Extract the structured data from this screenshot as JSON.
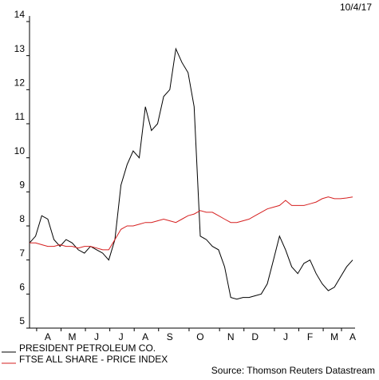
{
  "chart_data": {
    "type": "line",
    "date": "10/4/17",
    "source": "Source: Thomson Reuters Datastream",
    "categories": [
      null,
      null,
      null,
      "A",
      null,
      null,
      null,
      "M",
      null,
      null,
      null,
      "J",
      null,
      null,
      null,
      "J",
      null,
      null,
      null,
      "A",
      null,
      null,
      null,
      "S",
      null,
      null,
      null,
      null,
      "O",
      null,
      null,
      null,
      null,
      "N",
      null,
      null,
      null,
      "D",
      null,
      null,
      null,
      null,
      "J",
      null,
      null,
      null,
      "F",
      null,
      null,
      null,
      "M",
      null,
      null,
      "A"
    ],
    "series": [
      {
        "name": "PRESIDENT PETROLEUM CO.",
        "color": "#000000",
        "values": [
          7.5,
          7.7,
          8.3,
          8.2,
          7.6,
          7.4,
          7.6,
          7.5,
          7.3,
          7.2,
          7.4,
          7.3,
          7.2,
          7.0,
          7.6,
          9.2,
          9.8,
          10.2,
          10.0,
          11.5,
          10.8,
          11.0,
          11.8,
          12.0,
          13.2,
          12.8,
          12.5,
          11.5,
          7.7,
          7.6,
          7.4,
          7.3,
          6.8,
          5.9,
          5.85,
          5.9,
          5.9,
          5.95,
          6.0,
          6.3,
          7.0,
          7.7,
          7.3,
          6.8,
          6.6,
          6.9,
          7.0,
          6.6,
          6.3,
          6.1,
          6.2,
          6.5,
          6.8,
          7.0
        ]
      },
      {
        "name": "FTSE ALL SHARE - PRICE INDEX",
        "color": "#d62020",
        "values": [
          7.5,
          7.5,
          7.45,
          7.4,
          7.4,
          7.45,
          7.4,
          7.4,
          7.35,
          7.4,
          7.4,
          7.35,
          7.3,
          7.3,
          7.6,
          7.9,
          8.0,
          8.0,
          8.05,
          8.1,
          8.1,
          8.15,
          8.2,
          8.15,
          8.1,
          8.2,
          8.3,
          8.35,
          8.45,
          8.4,
          8.4,
          8.3,
          8.2,
          8.1,
          8.1,
          8.15,
          8.2,
          8.3,
          8.4,
          8.5,
          8.55,
          8.6,
          8.75,
          8.6,
          8.6,
          8.6,
          8.65,
          8.7,
          8.8,
          8.85,
          8.8,
          8.8,
          8.82,
          8.85
        ]
      }
    ],
    "ylim": [
      5,
      14
    ],
    "yticks": [
      5,
      6,
      7,
      8,
      9,
      10,
      11,
      12,
      13,
      14
    ]
  }
}
